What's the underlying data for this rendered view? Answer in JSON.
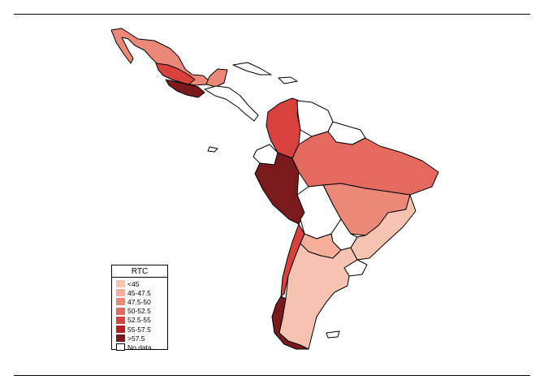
{
  "palette": {
    "lt45": "#f7c3b1",
    "b45_47_5": "#f4ae9a",
    "b47_5_50": "#ec8878",
    "b50_52_5": "#e46a5f",
    "b52_5_55": "#d9413c",
    "b55_57_5": "#b81f24",
    "gt57_5": "#7a1a1c",
    "nodata": "#ffffff"
  },
  "legend": {
    "title": "RTC",
    "items": [
      {
        "label": "<45",
        "color": "#f7c3b1"
      },
      {
        "label": "45-47.5",
        "color": "#f4ae9a"
      },
      {
        "label": "47.5-50",
        "color": "#ec8878"
      },
      {
        "label": "50-52.5",
        "color": "#e46a5f"
      },
      {
        "label": "52.5-55",
        "color": "#d9413c"
      },
      {
        "label": "55-57.5",
        "color": "#b81f24"
      },
      {
        "label": ">57.5",
        "color": "#7a1a1c"
      },
      {
        "label": "No data",
        "color": "nodata"
      }
    ]
  },
  "regions": {
    "mexico": "47.5-50",
    "central-mexico": "52.5-55",
    "southern-mexico": ">57.5",
    "yucatan": "47.5-50",
    "central-america": "No data",
    "cuba": "No data",
    "colombia": "52.5-55",
    "venezuela": "No data",
    "guianas": "No data",
    "ecuador": "No data",
    "peru": ">57.5",
    "brazil-north": "50-52.5",
    "brazil-central": "47.5-50",
    "brazil-south": "<45",
    "bolivia": "No data",
    "paraguay": "No data",
    "uruguay": "No data",
    "chile": "52.5-55",
    "southern-chile": ">57.5",
    "argentina": "<45",
    "argentina-north": "45-47.5"
  }
}
